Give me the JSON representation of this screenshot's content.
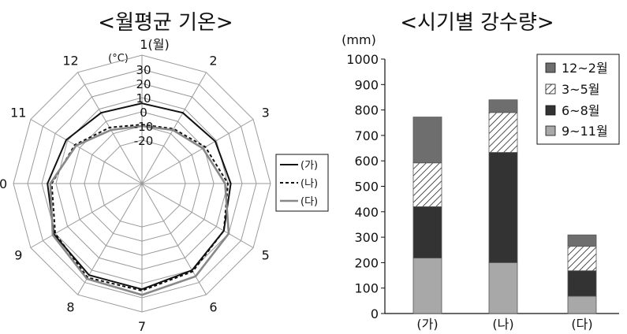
{
  "chart_data": [
    {
      "type": "radar",
      "title": "<월평균 기온>",
      "axis_unit": "(°C)",
      "categories": [
        "1(월)",
        "2",
        "3",
        "4",
        "5",
        "6",
        "7",
        "8",
        "9",
        "10",
        "11",
        "12"
      ],
      "radial_ticks": [
        "30",
        "20",
        "10",
        "0",
        "-10",
        "-20"
      ],
      "rlim": [
        -20,
        30
      ],
      "grid": true,
      "legend_position": "right",
      "series": [
        {
          "name": "(가)",
          "color": "#111111",
          "style": "solid",
          "values": [
            6,
            7,
            9,
            12,
            16,
            20,
            24,
            24,
            21,
            16,
            11,
            7
          ]
        },
        {
          "name": "(나)",
          "color": "#111111",
          "style": "dashed",
          "values": [
            -9,
            -6,
            1,
            10,
            16,
            21,
            25,
            26,
            20,
            13,
            4,
            -5
          ]
        },
        {
          "name": "(다)",
          "color": "#888888",
          "style": "solid",
          "values": [
            -10,
            -7,
            -1,
            8,
            20,
            25,
            28,
            27,
            22,
            14,
            3,
            -7
          ]
        }
      ]
    },
    {
      "type": "bar",
      "stacked": true,
      "title": "<시기별 강수량>",
      "ylabel": "(mm)",
      "categories": [
        "(가)",
        "(나)",
        "(다)"
      ],
      "ylim": [
        0,
        1000
      ],
      "yticks": [
        "0",
        "100",
        "200",
        "300",
        "400",
        "500",
        "600",
        "700",
        "800",
        "900",
        "1000"
      ],
      "legend_position": "top-right",
      "series": [
        {
          "name": "9~11월",
          "color": "#a8a8a8",
          "pattern": "solid",
          "values": [
            218,
            200,
            68
          ]
        },
        {
          "name": "6~8월",
          "color": "#333333",
          "pattern": "solid",
          "values": [
            202,
            433,
            100
          ]
        },
        {
          "name": "3~5월",
          "color": "#ffffff",
          "pattern": "hatch",
          "values": [
            172,
            157,
            96
          ]
        },
        {
          "name": "12~2월",
          "color": "#6e6e6e",
          "pattern": "solid",
          "values": [
            180,
            50,
            45
          ]
        }
      ]
    }
  ]
}
